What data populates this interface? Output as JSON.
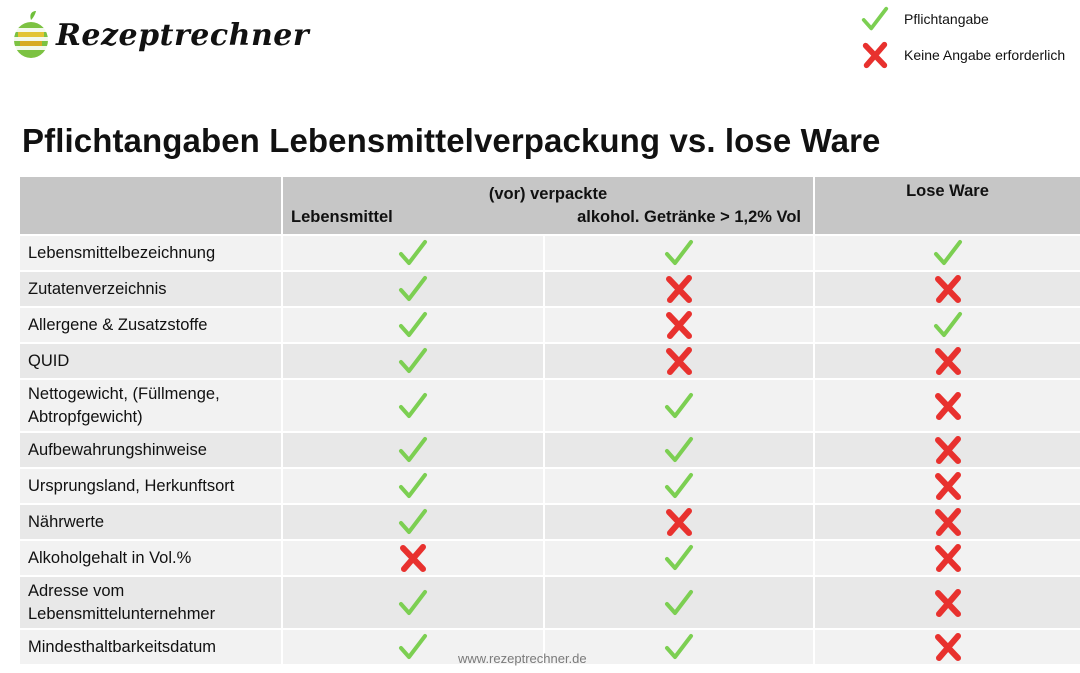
{
  "brand": {
    "name": "Rezeptrechner",
    "logo_icon": "apple-logo-icon"
  },
  "legend": [
    {
      "mark": "check",
      "label": "Pflichtangabe"
    },
    {
      "mark": "cross",
      "label": "Keine Angabe erforderlich"
    }
  ],
  "title": "Pflichtangaben Lebensmittelverpackung vs. lose Ware",
  "table": {
    "header": {
      "group": "(vor) verpackte",
      "col1": "Lebensmittel",
      "col2": "alkohol. Getränke > 1,2% Vol",
      "col3": "Lose Ware"
    },
    "rows": [
      {
        "label": "Lebensmittelbezeichnung",
        "marks": [
          "check",
          "check",
          "check"
        ]
      },
      {
        "label": "Zutatenverzeichnis",
        "marks": [
          "check",
          "cross",
          "cross"
        ]
      },
      {
        "label": "Allergene & Zusatzstoffe",
        "marks": [
          "check",
          "cross",
          "check"
        ]
      },
      {
        "label": "QUID",
        "marks": [
          "check",
          "cross",
          "cross"
        ]
      },
      {
        "label": "Nettogewicht, (Füllmenge, Abtropfgewicht)",
        "marks": [
          "check",
          "check",
          "cross"
        ]
      },
      {
        "label": "Aufbewahrungshinweise",
        "marks": [
          "check",
          "check",
          "cross"
        ]
      },
      {
        "label": "Ursprungsland, Herkunftsort",
        "marks": [
          "check",
          "check",
          "cross"
        ]
      },
      {
        "label": "Nährwerte",
        "marks": [
          "check",
          "cross",
          "cross"
        ]
      },
      {
        "label": "Alkoholgehalt in Vol.%",
        "marks": [
          "cross",
          "check",
          "cross"
        ]
      },
      {
        "label": "Adresse vom Lebensmittelunternehmer",
        "marks": [
          "check",
          "check",
          "cross"
        ]
      },
      {
        "label": "Mindesthaltbarkeitsdatum",
        "marks": [
          "check",
          "check",
          "cross"
        ]
      }
    ]
  },
  "footer": {
    "url": "www.rezeptrechner.de"
  },
  "colors": {
    "check": "#7ccf52",
    "cross": "#e8312e",
    "header_bg": "#c6c6c6"
  }
}
